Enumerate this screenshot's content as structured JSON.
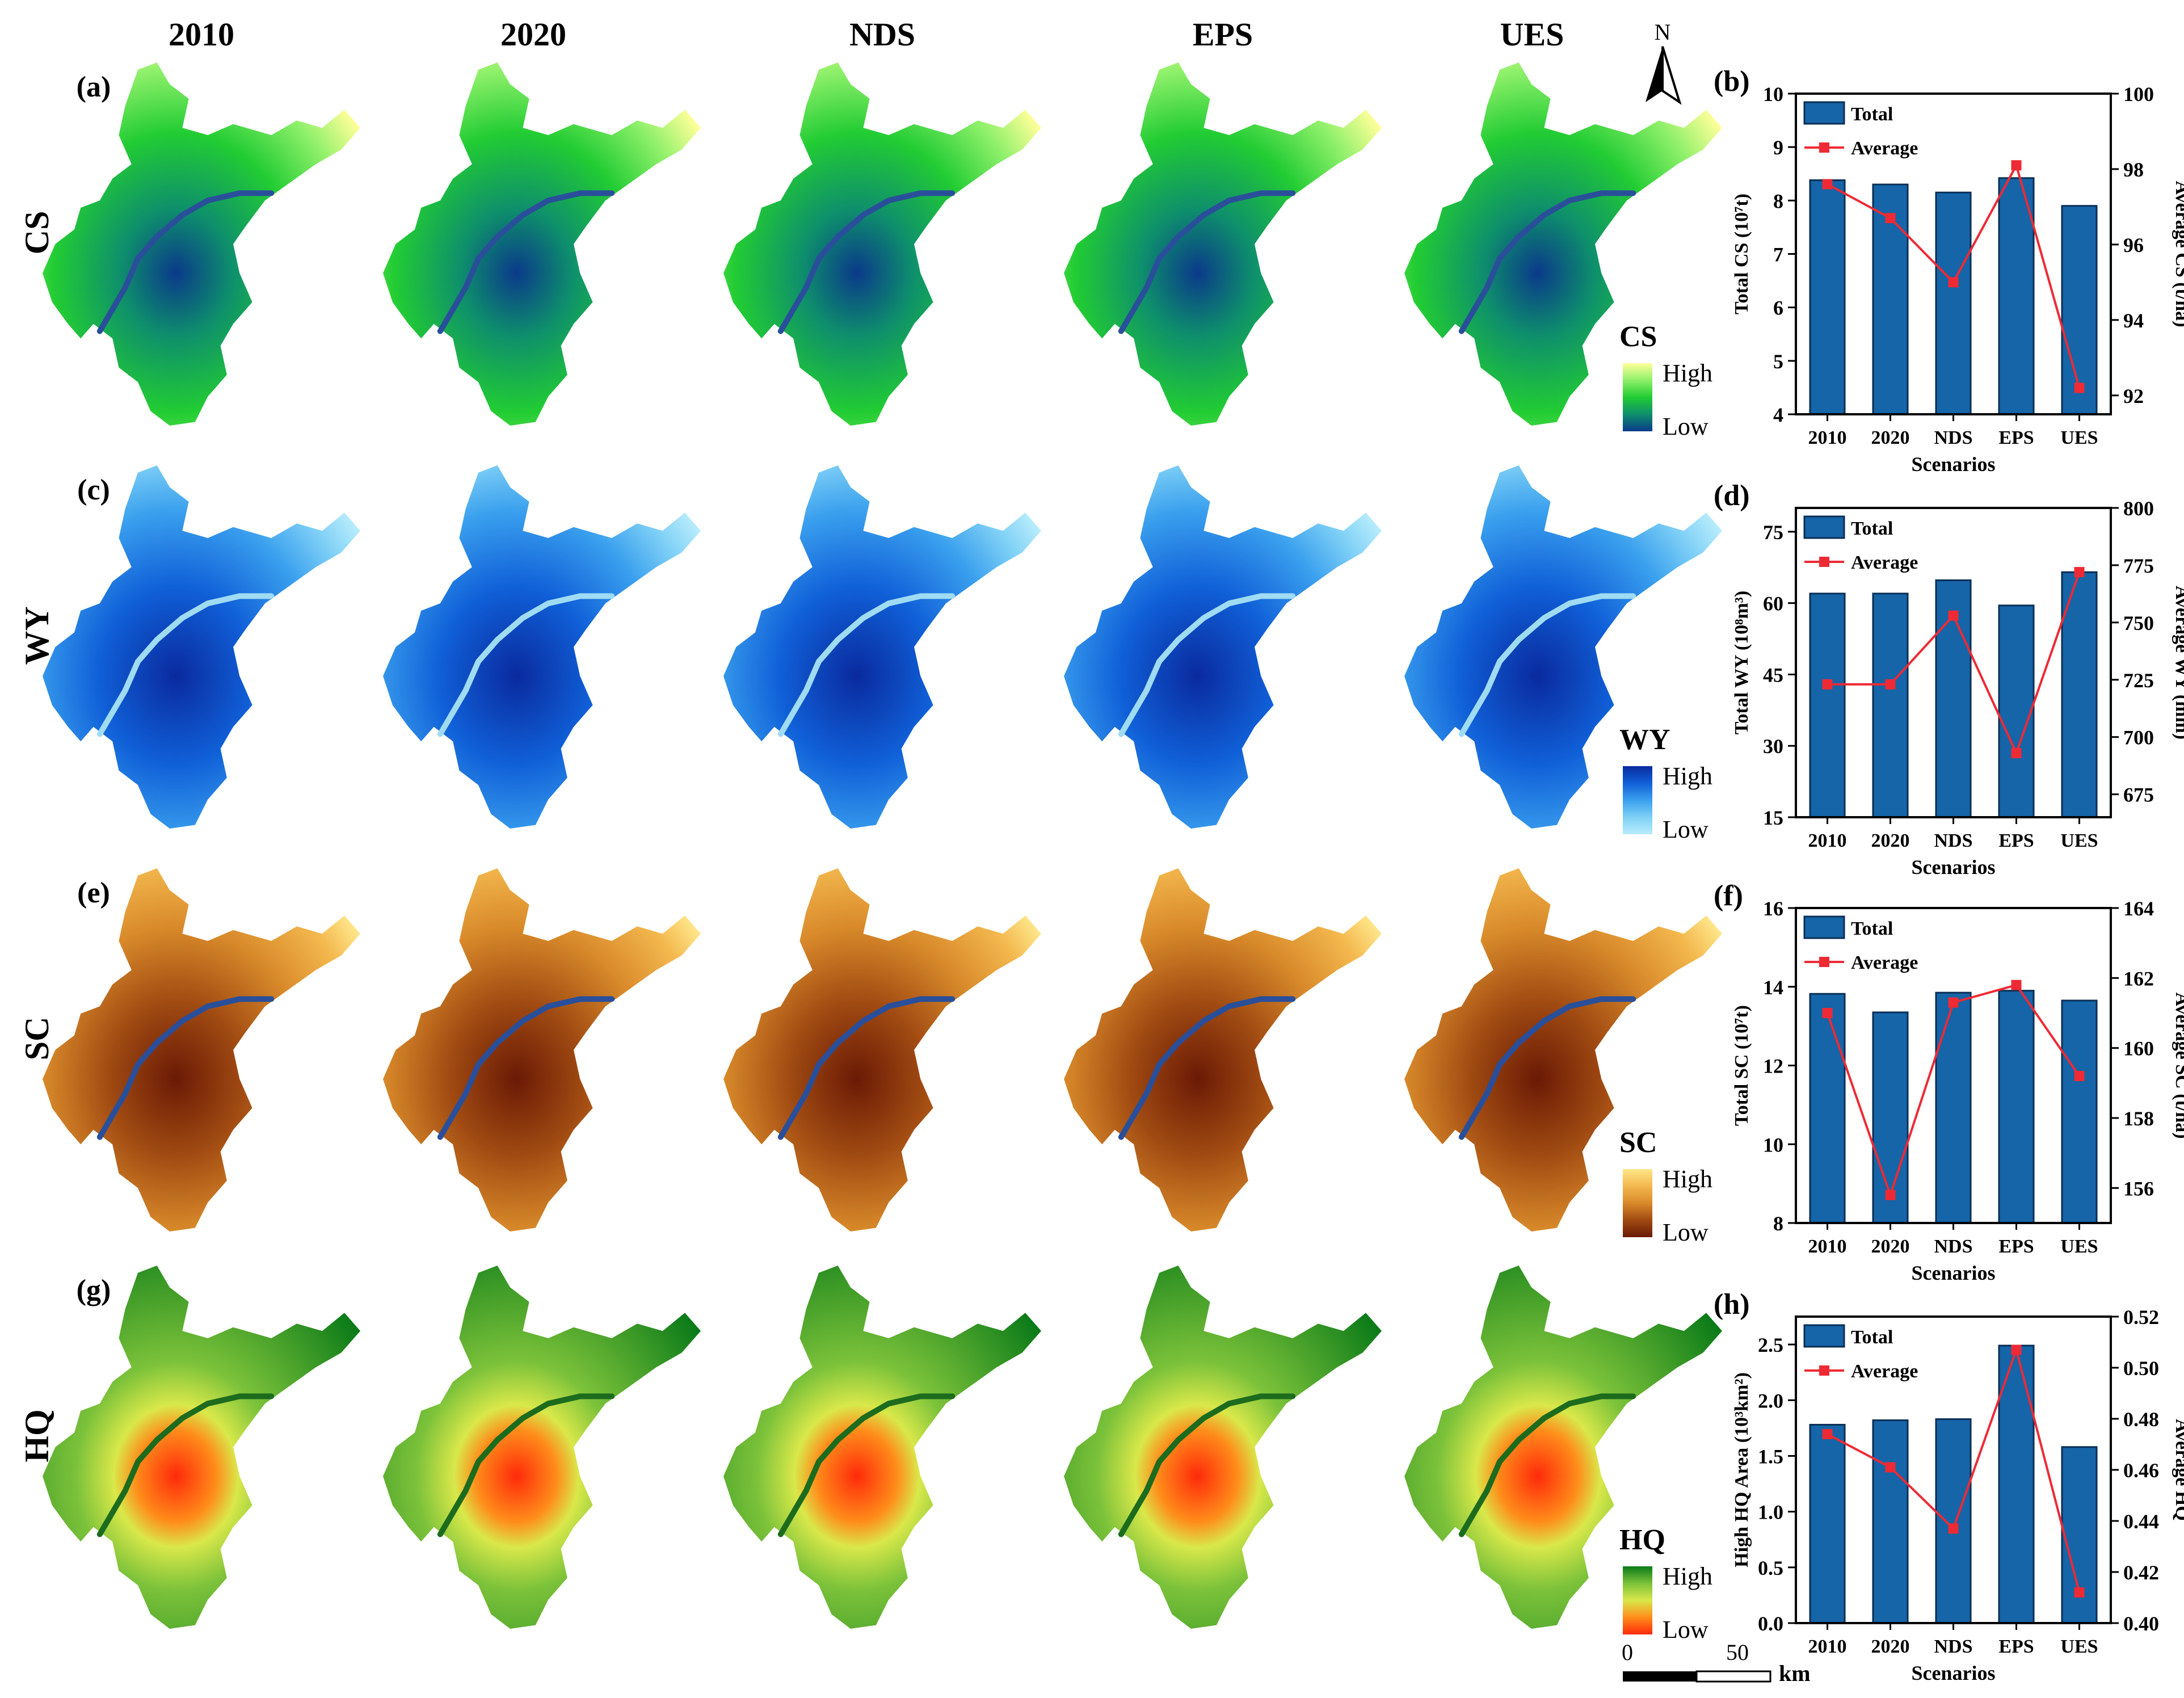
{
  "maps": {
    "columns": [
      "2010",
      "2020",
      "NDS",
      "EPS",
      "UES"
    ],
    "rows": [
      {
        "panel": "(a)",
        "label": "CS",
        "legend_title": "CS",
        "high": "High",
        "low": "Low",
        "ramp": [
          "#ffff99",
          "#8ef06a",
          "#22cc33",
          "#0e8f6c",
          "#0a3a8a"
        ]
      },
      {
        "panel": "(c)",
        "label": "WY",
        "legend_title": "WY",
        "high": "High",
        "low": "Low",
        "ramp": [
          "#0a2a9e",
          "#1060d8",
          "#3aa0ee",
          "#7fd0f6",
          "#b8ecfc"
        ]
      },
      {
        "panel": "(e)",
        "label": "SC",
        "legend_title": "SC",
        "high": "High",
        "low": "Low",
        "ramp": [
          "#ffe68a",
          "#f3b84e",
          "#d98a2a",
          "#a04a12",
          "#6a1a05"
        ]
      },
      {
        "panel": "(g)",
        "label": "HQ",
        "legend_title": "HQ",
        "high": "High",
        "low": "Low",
        "ramp": [
          "#0a7a18",
          "#7cc23a",
          "#d9e84a",
          "#ff8c1a",
          "#ff2a0a"
        ]
      }
    ],
    "north_label": "N",
    "scale": {
      "start": "0",
      "end": "50",
      "unit": "km"
    }
  },
  "chart_data": [
    {
      "type": "bar+line",
      "panel": "(b)",
      "categories": [
        "2010",
        "2020",
        "NDS",
        "EPS",
        "UES"
      ],
      "series": [
        {
          "name": "Total",
          "axis": "left",
          "values": [
            8.38,
            8.3,
            8.15,
            8.42,
            7.9
          ]
        },
        {
          "name": "Average",
          "axis": "right",
          "values": [
            97.6,
            96.7,
            95.0,
            98.1,
            92.2
          ]
        }
      ],
      "xlabel": "Scenarios",
      "ylabel_left": "Total CS (10⁷t)",
      "ylabel_right": "Average CS (t/ha)",
      "ylim_left": [
        4,
        10
      ],
      "yticks_left": [
        "4",
        "5",
        "6",
        "7",
        "8",
        "9",
        "10"
      ],
      "ylim_right": [
        91.5,
        100
      ],
      "yticks_right": [
        "92",
        "94",
        "96",
        "98",
        "100"
      ],
      "yticks_right_values": [
        92,
        94,
        96,
        98,
        100
      ]
    },
    {
      "type": "bar+line",
      "panel": "(d)",
      "categories": [
        "2010",
        "2020",
        "NDS",
        "EPS",
        "UES"
      ],
      "series": [
        {
          "name": "Total",
          "axis": "left",
          "values": [
            62,
            62,
            64.8,
            59.5,
            66.5
          ]
        },
        {
          "name": "Average",
          "axis": "right",
          "values": [
            723,
            723,
            753,
            693,
            772
          ]
        }
      ],
      "xlabel": "Scenarios",
      "ylabel_left": "Total WY (10⁸m³)",
      "ylabel_right": "Average WY (mm)",
      "ylim_left": [
        15,
        80
      ],
      "yticks_left": [
        "15",
        "30",
        "45",
        "60",
        "75"
      ],
      "yticks_left_values": [
        15,
        30,
        45,
        60,
        75
      ],
      "ylim_right": [
        665,
        800
      ],
      "yticks_right": [
        "675",
        "700",
        "725",
        "750",
        "775",
        "800"
      ],
      "yticks_right_values": [
        675,
        700,
        725,
        750,
        775,
        800
      ]
    },
    {
      "type": "bar+line",
      "panel": "(f)",
      "categories": [
        "2010",
        "2020",
        "NDS",
        "EPS",
        "UES"
      ],
      "series": [
        {
          "name": "Total",
          "axis": "left",
          "values": [
            13.82,
            13.35,
            13.85,
            13.9,
            13.65
          ]
        },
        {
          "name": "Average",
          "axis": "right",
          "values": [
            161.0,
            155.8,
            161.3,
            161.8,
            159.2
          ]
        }
      ],
      "xlabel": "Scenarios",
      "ylabel_left": "Total SC (10⁷t)",
      "ylabel_right": "Average SC (t/ha)",
      "ylim_left": [
        8,
        16
      ],
      "yticks_left": [
        "8",
        "10",
        "12",
        "14",
        "16"
      ],
      "yticks_left_values": [
        8,
        10,
        12,
        14,
        16
      ],
      "ylim_right": [
        155,
        164
      ],
      "yticks_right": [
        "156",
        "158",
        "160",
        "162",
        "164"
      ],
      "yticks_right_values": [
        156,
        158,
        160,
        162,
        164
      ]
    },
    {
      "type": "bar+line",
      "panel": "(h)",
      "categories": [
        "2010",
        "2020",
        "NDS",
        "EPS",
        "UES"
      ],
      "series": [
        {
          "name": "Total",
          "axis": "left",
          "values": [
            1.78,
            1.82,
            1.83,
            2.49,
            1.58
          ]
        },
        {
          "name": "Average",
          "axis": "right",
          "values": [
            0.474,
            0.461,
            0.437,
            0.507,
            0.412
          ]
        }
      ],
      "xlabel": "Scenarios",
      "ylabel_left": "High HQ Area (10³km²)",
      "ylabel_right": "Average HQ",
      "ylim_left": [
        0,
        2.75
      ],
      "yticks_left": [
        "0.0",
        "0.5",
        "1.0",
        "1.5",
        "2.0",
        "2.5"
      ],
      "yticks_left_values": [
        0,
        0.5,
        1.0,
        1.5,
        2.0,
        2.5
      ],
      "ylim_right": [
        0.4,
        0.52
      ],
      "yticks_right": [
        "0.40",
        "0.42",
        "0.44",
        "0.46",
        "0.48",
        "0.50",
        "0.52"
      ],
      "yticks_right_values": [
        0.4,
        0.42,
        0.44,
        0.46,
        0.48,
        0.5,
        0.52
      ]
    }
  ],
  "colors": {
    "bar": "#1565a8",
    "bar_edge": "#0a2f55",
    "line": "#ee2a34"
  }
}
